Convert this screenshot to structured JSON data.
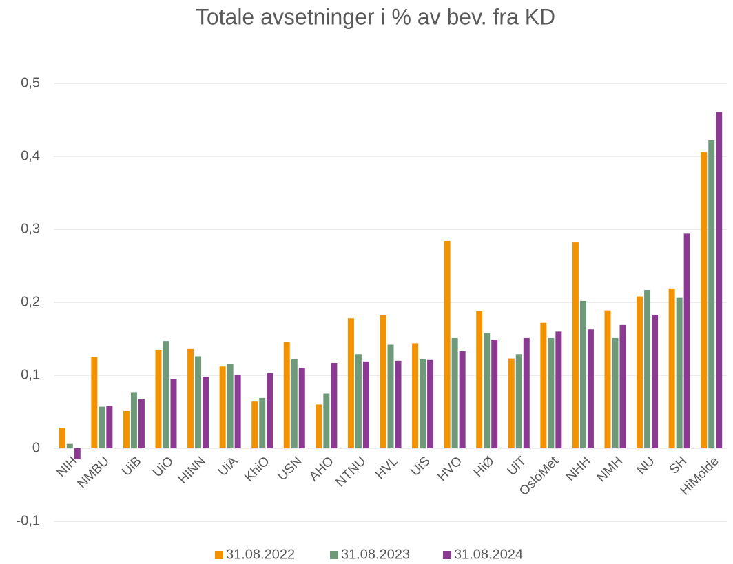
{
  "chart_data": {
    "type": "bar",
    "title": "Totale avsetninger i % av bev. fra KD",
    "categories": [
      "NIH",
      "NMBU",
      "UiB",
      "UiO",
      "HINN",
      "UiA",
      "KhiO",
      "USN",
      "AHO",
      "NTNU",
      "HVL",
      "UiS",
      "HVO",
      "HiØ",
      "UiT",
      "OsloMet",
      "NHH",
      "NMH",
      "NU",
      "SH",
      "HiMolde"
    ],
    "series": [
      {
        "name": "31.08.2022",
        "color": "#f39200",
        "values": [
          0.028,
          0.125,
          0.051,
          0.135,
          0.136,
          0.112,
          0.064,
          0.146,
          0.06,
          0.178,
          0.183,
          0.144,
          0.284,
          0.188,
          0.123,
          0.172,
          0.282,
          0.189,
          0.208,
          0.219,
          0.406
        ]
      },
      {
        "name": "31.08.2023",
        "color": "#6f9a7a",
        "values": [
          0.006,
          0.057,
          0.077,
          0.147,
          0.126,
          0.116,
          0.069,
          0.122,
          0.075,
          0.129,
          0.142,
          0.122,
          0.151,
          0.158,
          0.129,
          0.151,
          0.202,
          0.151,
          0.217,
          0.206,
          0.422
        ]
      },
      {
        "name": "31.08.2024",
        "color": "#8a3a91",
        "values": [
          -0.015,
          0.058,
          0.067,
          0.095,
          0.098,
          0.101,
          0.103,
          0.11,
          0.117,
          0.119,
          0.12,
          0.121,
          0.133,
          0.149,
          0.151,
          0.16,
          0.163,
          0.169,
          0.183,
          0.294,
          0.461
        ]
      }
    ],
    "ylim": [
      -0.1,
      0.5
    ],
    "yticks": [
      {
        "value": -0.1,
        "label": "-0,1"
      },
      0,
      {
        "value": 0.1,
        "label": "0,1"
      },
      {
        "value": 0.2,
        "label": "0,2"
      },
      {
        "value": 0.3,
        "label": "0,3"
      },
      {
        "value": 0.4,
        "label": "0,4"
      },
      {
        "value": 0.5,
        "label": "0,5"
      }
    ],
    "grid": true,
    "legend": "bottom"
  }
}
